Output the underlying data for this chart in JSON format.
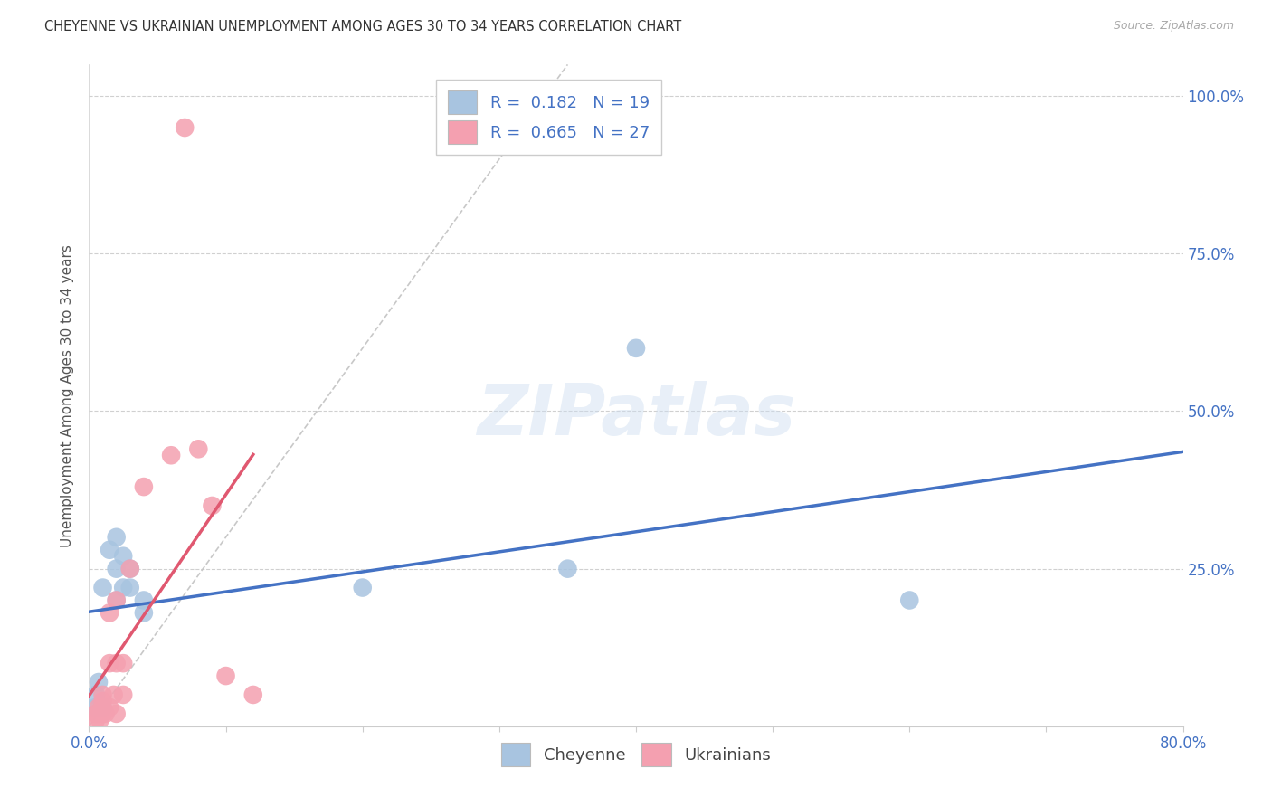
{
  "title": "CHEYENNE VS UKRAINIAN UNEMPLOYMENT AMONG AGES 30 TO 34 YEARS CORRELATION CHART",
  "source": "Source: ZipAtlas.com",
  "ylabel": "Unemployment Among Ages 30 to 34 years",
  "xlim": [
    0.0,
    0.8
  ],
  "ylim": [
    0.0,
    1.05
  ],
  "xticks": [
    0.0,
    0.1,
    0.2,
    0.3,
    0.4,
    0.5,
    0.6,
    0.7,
    0.8
  ],
  "xticklabels": [
    "0.0%",
    "",
    "",
    "",
    "",
    "",
    "",
    "",
    "80.0%"
  ],
  "ytick_positions": [
    0.0,
    0.25,
    0.5,
    0.75,
    1.0
  ],
  "ytick_labels": [
    "",
    "25.0%",
    "50.0%",
    "75.0%",
    "100.0%"
  ],
  "cheyenne_R": 0.182,
  "cheyenne_N": 19,
  "ukrainian_R": 0.665,
  "ukrainian_N": 27,
  "watermark": "ZIPatlas",
  "cheyenne_color": "#a8c4e0",
  "ukrainian_color": "#f4a0b0",
  "cheyenne_line_color": "#4472c4",
  "ukrainian_line_color": "#e05870",
  "diagonal_color": "#c8c8c8",
  "cheyenne_points": [
    [
      0.005,
      0.03
    ],
    [
      0.005,
      0.05
    ],
    [
      0.007,
      0.07
    ],
    [
      0.01,
      0.03
    ],
    [
      0.01,
      0.22
    ],
    [
      0.015,
      0.28
    ],
    [
      0.02,
      0.3
    ],
    [
      0.02,
      0.25
    ],
    [
      0.02,
      0.2
    ],
    [
      0.025,
      0.27
    ],
    [
      0.025,
      0.22
    ],
    [
      0.03,
      0.25
    ],
    [
      0.03,
      0.22
    ],
    [
      0.04,
      0.18
    ],
    [
      0.04,
      0.2
    ],
    [
      0.2,
      0.22
    ],
    [
      0.35,
      0.25
    ],
    [
      0.4,
      0.6
    ],
    [
      0.6,
      0.2
    ]
  ],
  "ukrainian_points": [
    [
      0.005,
      0.01
    ],
    [
      0.005,
      0.02
    ],
    [
      0.007,
      0.02
    ],
    [
      0.007,
      0.03
    ],
    [
      0.008,
      0.01
    ],
    [
      0.01,
      0.02
    ],
    [
      0.01,
      0.03
    ],
    [
      0.01,
      0.04
    ],
    [
      0.01,
      0.05
    ],
    [
      0.012,
      0.02
    ],
    [
      0.015,
      0.03
    ],
    [
      0.015,
      0.1
    ],
    [
      0.015,
      0.18
    ],
    [
      0.018,
      0.05
    ],
    [
      0.02,
      0.02
    ],
    [
      0.02,
      0.1
    ],
    [
      0.02,
      0.2
    ],
    [
      0.025,
      0.1
    ],
    [
      0.025,
      0.05
    ],
    [
      0.03,
      0.25
    ],
    [
      0.04,
      0.38
    ],
    [
      0.06,
      0.43
    ],
    [
      0.07,
      0.95
    ],
    [
      0.08,
      0.44
    ],
    [
      0.09,
      0.35
    ],
    [
      0.1,
      0.08
    ],
    [
      0.12,
      0.05
    ]
  ],
  "background_color": "#ffffff",
  "grid_color": "#d0d0d0"
}
